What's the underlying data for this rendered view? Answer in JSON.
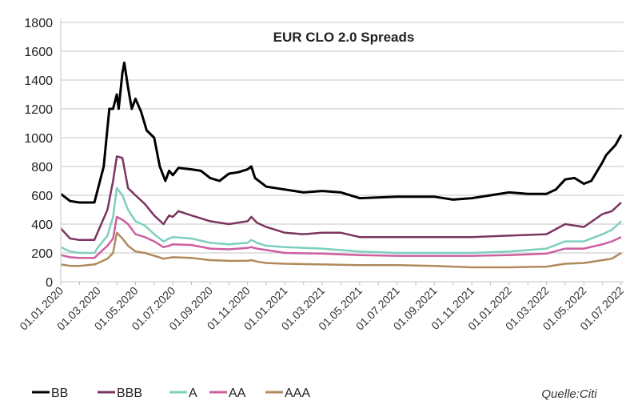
{
  "chart_data": {
    "type": "line",
    "title": "EUR CLO 2.0 Spreads",
    "source": "Quelle:Citi",
    "xlabel": "",
    "ylabel": "",
    "ylim": [
      0,
      1800
    ],
    "yticks": [
      0,
      200,
      400,
      600,
      800,
      1000,
      1200,
      1400,
      1600,
      1800
    ],
    "x_unit": "months since 01.01.2020",
    "xticks": [
      0,
      2,
      4,
      6,
      8,
      10,
      12,
      14,
      16,
      18,
      20,
      22,
      24,
      26,
      28,
      30
    ],
    "xtick_labels": [
      "01.01.2020",
      "01.03.2020",
      "01.05.2020",
      "01.07.2020",
      "01.09.2020",
      "01.11.2020",
      "01.01.2021",
      "01.03.2021",
      "01.05.2021",
      "01.07.2021",
      "01.09.2021",
      "01.11.2021",
      "01.01.2022",
      "01.03.2022",
      "01.05.2022",
      "01.07.2022"
    ],
    "grid": true,
    "legend": "bottom",
    "series": [
      {
        "name": "BB",
        "color": "#000000",
        "x": [
          0,
          0.5,
          1,
          1.8,
          2,
          2.3,
          2.6,
          2.8,
          3,
          3.1,
          3.3,
          3.4,
          3.6,
          3.8,
          4,
          4.3,
          4.6,
          5,
          5.3,
          5.6,
          5.8,
          6,
          6.3,
          7,
          7.5,
          8,
          8.5,
          9,
          9.5,
          10,
          10.2,
          10.4,
          11,
          12,
          13,
          14,
          15,
          16,
          18,
          20,
          21,
          22,
          23,
          24,
          25,
          26,
          26.5,
          27,
          27.5,
          28,
          28.4,
          29,
          29.2,
          29.7,
          30
        ],
        "y": [
          610,
          560,
          550,
          550,
          650,
          800,
          1200,
          1200,
          1300,
          1200,
          1450,
          1520,
          1350,
          1200,
          1270,
          1180,
          1050,
          1000,
          800,
          700,
          770,
          740,
          790,
          780,
          770,
          720,
          700,
          750,
          760,
          780,
          800,
          720,
          660,
          640,
          620,
          630,
          620,
          580,
          590,
          590,
          570,
          580,
          600,
          620,
          610,
          610,
          640,
          710,
          720,
          680,
          700,
          830,
          880,
          950,
          1020
        ]
      },
      {
        "name": "BBB",
        "color": "#7b3560",
        "x": [
          0,
          0.5,
          1,
          1.8,
          2,
          2.5,
          2.8,
          3,
          3.3,
          3.6,
          4,
          4.5,
          5,
          5.5,
          5.8,
          6,
          6.3,
          7,
          8,
          9,
          10,
          10.2,
          10.5,
          11,
          12,
          13,
          14,
          15,
          16,
          18,
          20,
          22,
          24,
          26,
          27,
          28,
          29,
          29.5,
          30
        ],
        "y": [
          370,
          300,
          290,
          290,
          350,
          500,
          700,
          870,
          860,
          650,
          600,
          540,
          460,
          400,
          460,
          450,
          490,
          460,
          420,
          400,
          420,
          450,
          410,
          380,
          340,
          330,
          340,
          340,
          310,
          310,
          310,
          310,
          320,
          330,
          400,
          380,
          470,
          490,
          550
        ]
      },
      {
        "name": "A",
        "color": "#7fcfbf",
        "x": [
          0,
          0.5,
          1,
          1.8,
          2,
          2.5,
          2.8,
          3,
          3.3,
          3.6,
          4,
          4.5,
          5,
          5.5,
          5.8,
          6,
          7,
          8,
          9,
          10,
          10.2,
          10.5,
          11,
          12,
          14,
          16,
          18,
          20,
          22,
          24,
          26,
          27,
          28,
          29,
          29.5,
          30
        ],
        "y": [
          240,
          210,
          200,
          200,
          240,
          320,
          450,
          650,
          600,
          500,
          420,
          390,
          330,
          280,
          300,
          310,
          300,
          270,
          260,
          270,
          290,
          270,
          250,
          240,
          230,
          210,
          200,
          200,
          200,
          210,
          230,
          280,
          280,
          330,
          360,
          420
        ]
      },
      {
        "name": "AA",
        "color": "#cc5fa0",
        "x": [
          0,
          0.5,
          1,
          1.8,
          2,
          2.5,
          2.8,
          3,
          3.3,
          3.6,
          4,
          4.5,
          5,
          5.5,
          5.8,
          6,
          7,
          8,
          9,
          10,
          10.2,
          10.5,
          11,
          12,
          14,
          16,
          18,
          20,
          22,
          24,
          26,
          27,
          28,
          29,
          29.5,
          30
        ],
        "y": [
          185,
          170,
          165,
          165,
          190,
          250,
          300,
          450,
          430,
          400,
          330,
          310,
          280,
          240,
          250,
          260,
          255,
          230,
          225,
          235,
          240,
          230,
          220,
          200,
          195,
          185,
          180,
          180,
          180,
          185,
          195,
          230,
          230,
          260,
          280,
          310
        ]
      },
      {
        "name": "AAA",
        "color": "#b08a5c",
        "x": [
          0,
          0.5,
          1,
          1.8,
          2,
          2.5,
          2.8,
          3,
          3.3,
          3.6,
          4,
          4.5,
          5,
          5.5,
          6,
          7,
          8,
          9,
          10,
          10.2,
          10.5,
          11,
          12,
          14,
          16,
          18,
          20,
          22,
          24,
          26,
          27,
          28,
          29,
          29.5,
          30
        ],
        "y": [
          120,
          110,
          110,
          120,
          130,
          160,
          200,
          340,
          300,
          250,
          210,
          200,
          180,
          160,
          170,
          165,
          150,
          145,
          145,
          150,
          140,
          130,
          125,
          120,
          115,
          115,
          110,
          100,
          100,
          105,
          125,
          130,
          150,
          160,
          200
        ]
      }
    ]
  }
}
